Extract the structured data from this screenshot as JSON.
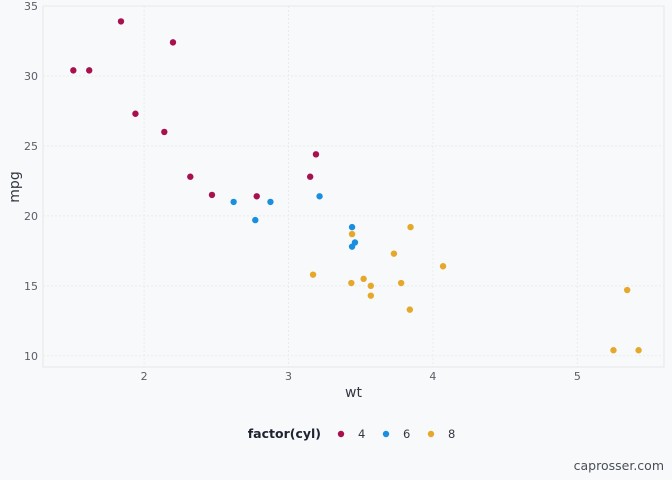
{
  "caption": "caprosser.com",
  "chart_data": {
    "type": "scatter",
    "xlabel": "wt",
    "ylabel": "mpg",
    "xlim": [
      1.3,
      5.6
    ],
    "ylim": [
      9.2,
      35.0
    ],
    "x_ticks": [
      2,
      3,
      4,
      5
    ],
    "y_ticks": [
      10,
      15,
      20,
      25,
      30,
      35
    ],
    "grid": true,
    "legend": {
      "title": "factor(cyl)",
      "placement": "bottom"
    },
    "series": [
      {
        "name": "4",
        "color": "#a8114f",
        "points": [
          {
            "x": 1.51,
            "y": 30.4
          },
          {
            "x": 1.62,
            "y": 30.4
          },
          {
            "x": 1.84,
            "y": 33.9
          },
          {
            "x": 1.94,
            "y": 27.3
          },
          {
            "x": 2.14,
            "y": 26.0
          },
          {
            "x": 2.2,
            "y": 32.4
          },
          {
            "x": 2.32,
            "y": 22.8
          },
          {
            "x": 2.47,
            "y": 21.5
          },
          {
            "x": 2.78,
            "y": 21.4
          },
          {
            "x": 3.15,
            "y": 22.8
          },
          {
            "x": 3.19,
            "y": 24.4
          }
        ]
      },
      {
        "name": "6",
        "color": "#1a8fe0",
        "points": [
          {
            "x": 2.62,
            "y": 21.0
          },
          {
            "x": 2.77,
            "y": 19.7
          },
          {
            "x": 2.875,
            "y": 21.0
          },
          {
            "x": 3.215,
            "y": 21.4
          },
          {
            "x": 3.44,
            "y": 19.2
          },
          {
            "x": 3.44,
            "y": 17.8
          },
          {
            "x": 3.46,
            "y": 18.1
          }
        ]
      },
      {
        "name": "8",
        "color": "#e6a82a",
        "points": [
          {
            "x": 3.17,
            "y": 15.8
          },
          {
            "x": 3.435,
            "y": 15.2
          },
          {
            "x": 3.44,
            "y": 18.7
          },
          {
            "x": 3.52,
            "y": 15.5
          },
          {
            "x": 3.57,
            "y": 15.0
          },
          {
            "x": 3.57,
            "y": 14.3
          },
          {
            "x": 3.73,
            "y": 17.3
          },
          {
            "x": 3.78,
            "y": 15.2
          },
          {
            "x": 3.84,
            "y": 13.3
          },
          {
            "x": 3.845,
            "y": 19.2
          },
          {
            "x": 4.07,
            "y": 16.4
          },
          {
            "x": 5.25,
            "y": 10.4
          },
          {
            "x": 5.345,
            "y": 14.7
          },
          {
            "x": 5.424,
            "y": 10.4
          }
        ]
      }
    ]
  }
}
